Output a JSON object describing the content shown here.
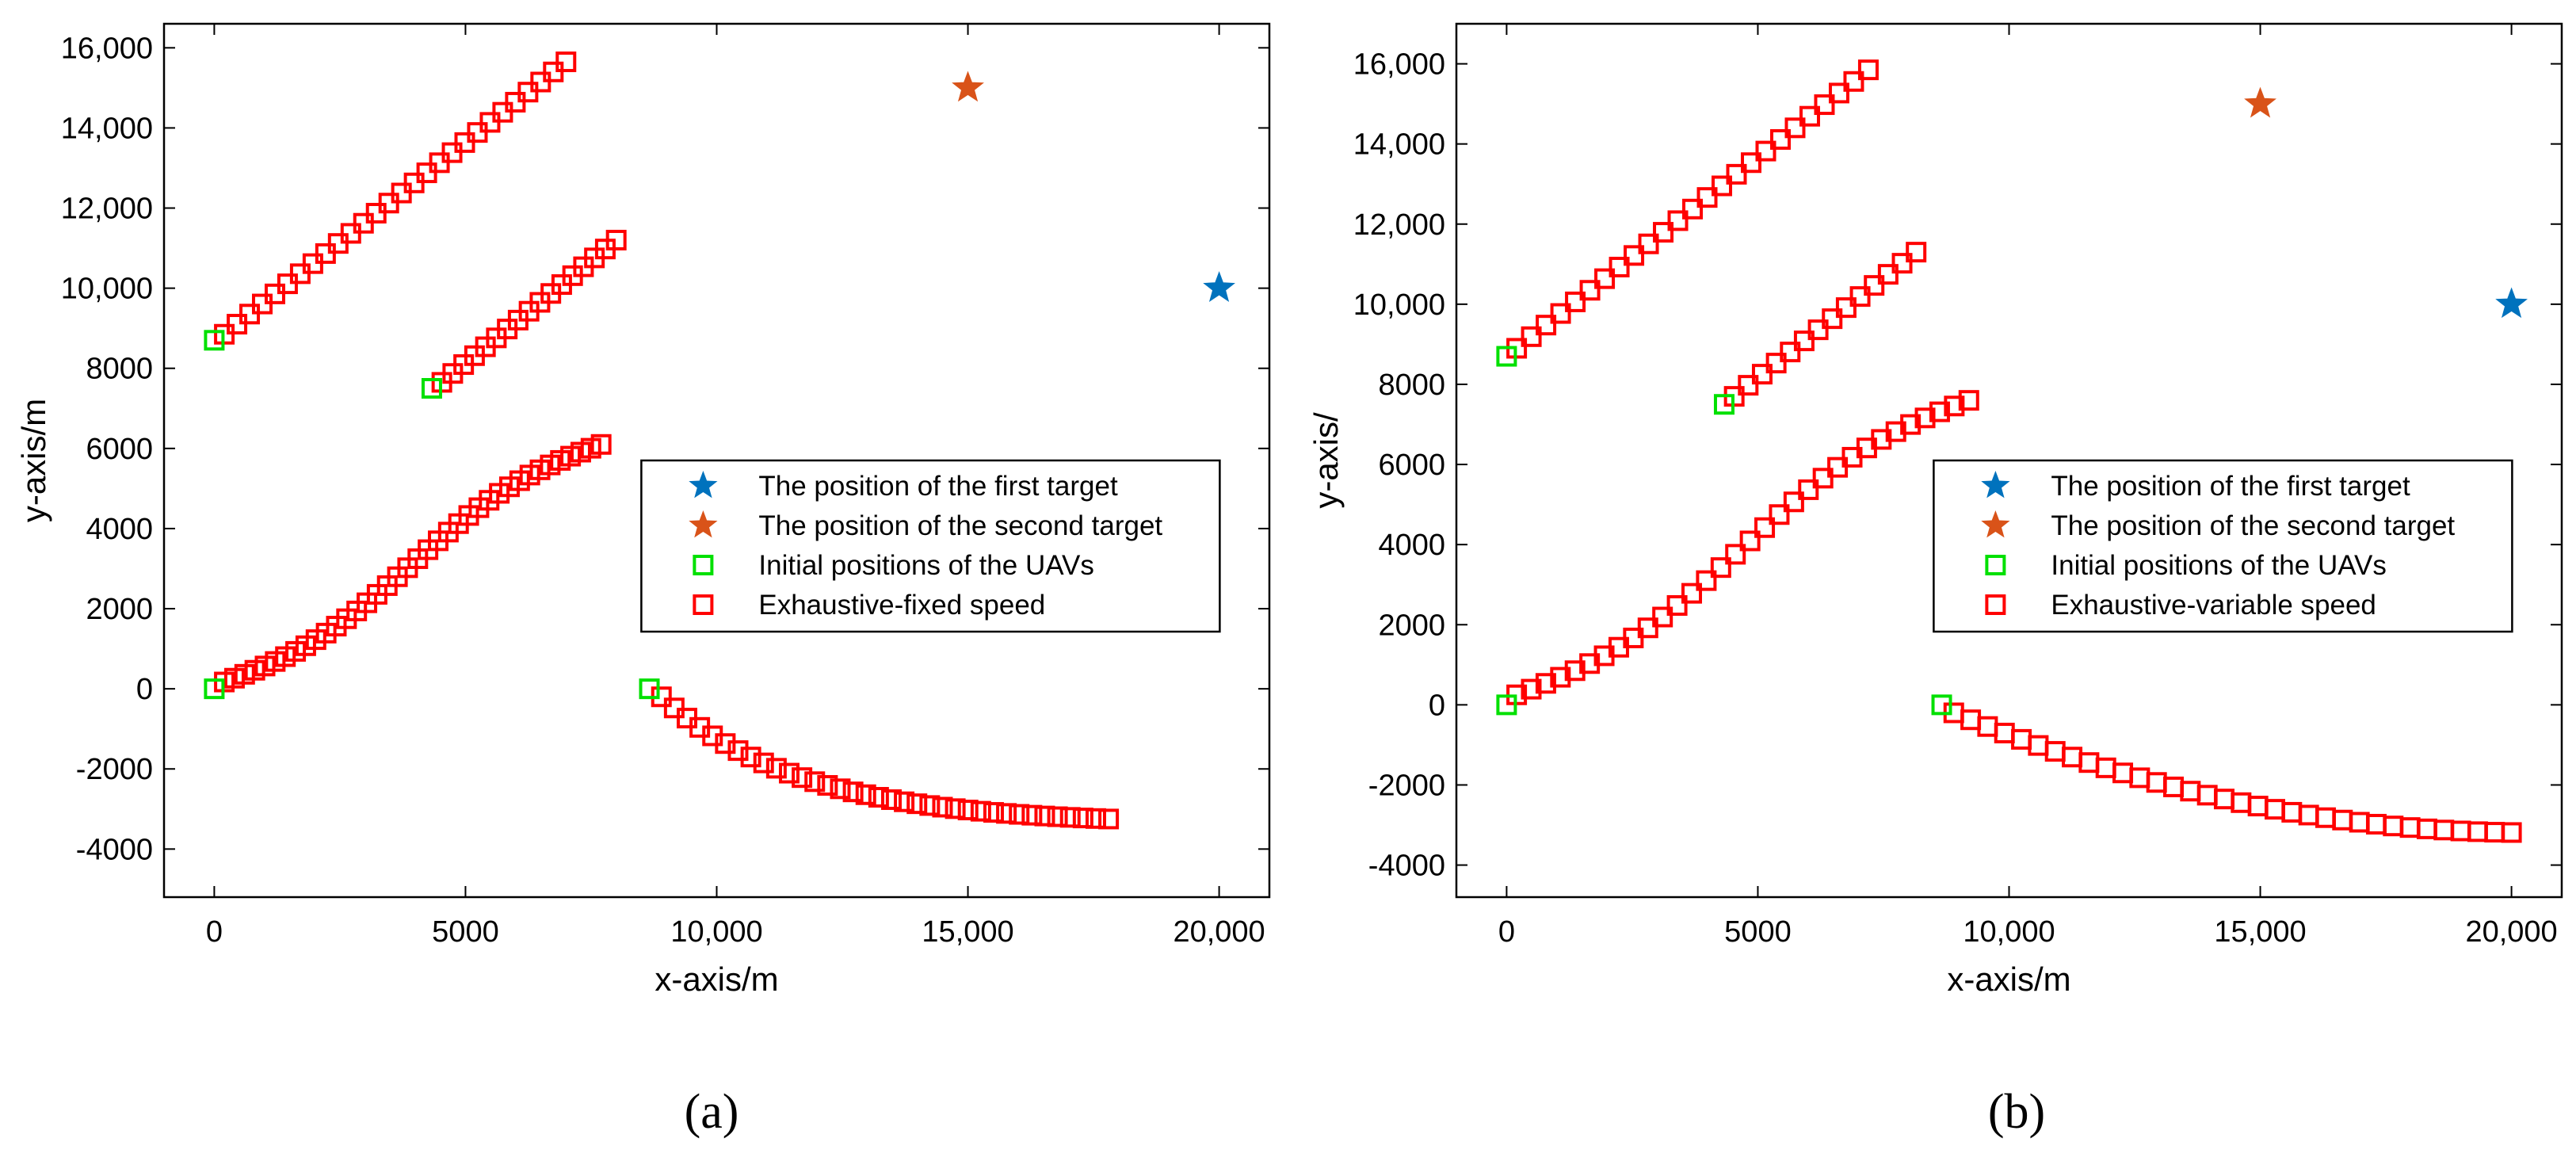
{
  "colors": {
    "first_target": "#0072BD",
    "second_target": "#D95319",
    "initial": "#00E000",
    "route": "#FF0000",
    "axis": "#000000"
  },
  "chart_data": [
    {
      "type": "scatter",
      "panel_label": "(a)",
      "title": "",
      "xlabel": "x-axis/m",
      "ylabel": "y-axis/m",
      "xlim": [
        -1000,
        21000
      ],
      "ylim": [
        -5200,
        16600
      ],
      "xticks": [
        0,
        5000,
        10000,
        15000,
        20000
      ],
      "xtick_labels": [
        "0",
        "5000",
        "10,000",
        "15,000",
        "20,000"
      ],
      "yticks": [
        -4000,
        -2000,
        0,
        2000,
        4000,
        6000,
        8000,
        10000,
        12000,
        14000,
        16000
      ],
      "ytick_labels": [
        "-4000",
        "-2000",
        "0",
        "2000",
        "4000",
        "6000",
        "8000",
        "10,000",
        "12,000",
        "14,000",
        "16,000"
      ],
      "legend": [
        "The position of the first target",
        "The position of the second target",
        "Initial positions of the UAVs",
        "Exhaustive-fixed speed"
      ],
      "legend_position": "center-right",
      "targets": [
        {
          "name": "first",
          "x": 20000,
          "y": 10000
        },
        {
          "name": "second",
          "x": 15000,
          "y": 15000
        }
      ],
      "initial_positions": [
        {
          "x": 0,
          "y": 8700
        },
        {
          "x": 4330,
          "y": 7500
        },
        {
          "x": 0,
          "y": 0
        },
        {
          "x": 8660,
          "y": 0
        }
      ],
      "routes": [
        {
          "x": [
            200,
            7000
          ],
          "y": [
            8850,
            15650
          ],
          "n": 28,
          "shape": "line"
        },
        {
          "x": [
            4530,
            8000
          ],
          "y": [
            7650,
            11200
          ],
          "n": 17,
          "shape": "line"
        },
        {
          "x": [
            200,
            7700
          ],
          "y": [
            170,
            6100
          ],
          "n": 38,
          "shape": "scurve"
        },
        {
          "x": [
            8900,
            17800
          ],
          "y": [
            -200,
            -3250
          ],
          "n": 36,
          "shape": "decay"
        }
      ]
    },
    {
      "type": "scatter",
      "panel_label": "(b)",
      "title": "",
      "xlabel": "x-axis/m",
      "ylabel": "y-axis/",
      "xlim": [
        -1000,
        21000
      ],
      "ylim": [
        -4800,
        17000
      ],
      "xticks": [
        0,
        5000,
        10000,
        15000,
        20000
      ],
      "xtick_labels": [
        "0",
        "5000",
        "10,000",
        "15,000",
        "20,000"
      ],
      "yticks": [
        -4000,
        -2000,
        0,
        2000,
        4000,
        6000,
        8000,
        10000,
        12000,
        14000,
        16000
      ],
      "ytick_labels": [
        "-4000",
        "-2000",
        "0",
        "2000",
        "4000",
        "6000",
        "8000",
        "10,000",
        "12,000",
        "14,000",
        "16,000"
      ],
      "legend": [
        "The position of the first target",
        "The position of the second target",
        "Initial positions of the UAVs",
        "Exhaustive-variable speed"
      ],
      "legend_position": "center-right",
      "targets": [
        {
          "name": "first",
          "x": 20000,
          "y": 10000
        },
        {
          "name": "second",
          "x": 15000,
          "y": 15000
        }
      ],
      "initial_positions": [
        {
          "x": 0,
          "y": 8700
        },
        {
          "x": 4330,
          "y": 7500
        },
        {
          "x": 0,
          "y": 0
        },
        {
          "x": 8660,
          "y": 0
        }
      ],
      "routes": [
        {
          "x": [
            200,
            7200
          ],
          "y": [
            8900,
            15850
          ],
          "n": 25,
          "shape": "line"
        },
        {
          "x": [
            4530,
            8150
          ],
          "y": [
            7700,
            11300
          ],
          "n": 14,
          "shape": "line"
        },
        {
          "x": [
            200,
            9200
          ],
          "y": [
            250,
            7600
          ],
          "n": 32,
          "shape": "scurve"
        },
        {
          "x": [
            8900,
            20000
          ],
          "y": [
            -200,
            -3100
          ],
          "n": 34,
          "shape": "dip"
        }
      ]
    }
  ]
}
